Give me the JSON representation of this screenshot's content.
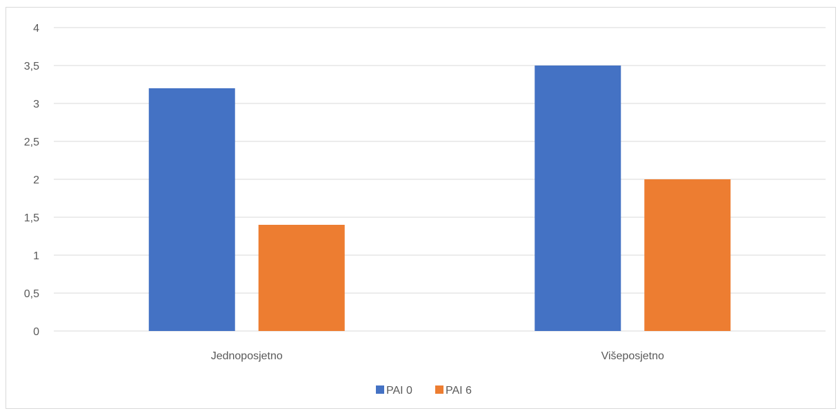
{
  "chart_data": {
    "type": "bar",
    "title": "",
    "xlabel": "",
    "ylabel": "",
    "categories": [
      "Jednoposjetno",
      "Višeposjetno"
    ],
    "series": [
      {
        "name": "PAI 0",
        "color": "#4472c4",
        "values": [
          3.2,
          3.5
        ]
      },
      {
        "name": "PAI 6",
        "color": "#ed7d31",
        "values": [
          1.4,
          2.0
        ]
      }
    ],
    "ylim": [
      0,
      4
    ],
    "yticks": [
      "0",
      "0,5",
      "1",
      "1,5",
      "2",
      "2,5",
      "3",
      "3,5",
      "4"
    ],
    "grid": true,
    "legend": "bottom"
  }
}
